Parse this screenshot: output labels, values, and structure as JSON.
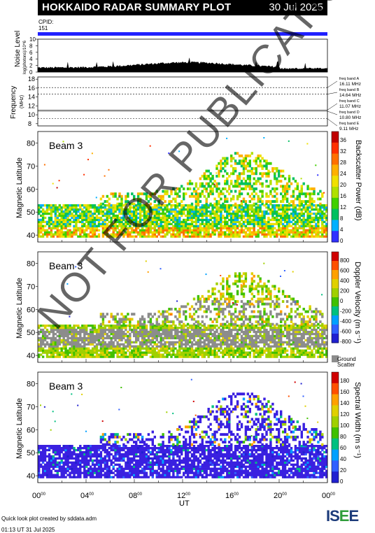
{
  "title": "HOKKAIDO RADAR SUMMARY PLOT",
  "date": "30 Jul 2025",
  "cpid": {
    "label": "CPID:",
    "value": "151"
  },
  "noise_panel": {
    "ylabel": "Noise Level",
    "yunit": "log(photons)/10^6",
    "yticks": [
      "10",
      "8",
      "6",
      "4",
      "2",
      "0"
    ]
  },
  "freq_panel": {
    "ylabel": "Frequency",
    "yunit": "(MHz)",
    "yticks": [
      "18",
      "16",
      "14",
      "12",
      "10",
      "8"
    ],
    "bands": [
      {
        "name": "freq band A",
        "freq": "16.11 MHz"
      },
      {
        "name": "freq band B",
        "freq": "14.64 MHz"
      },
      {
        "name": "freq band C",
        "freq": "11.07 MHz"
      },
      {
        "name": "freq band D",
        "freq": "10.80 MHz"
      },
      {
        "name": "freq band E",
        "freq": "9.11 MHz"
      }
    ]
  },
  "panels": [
    {
      "beam": "Beam  3",
      "ylabel": "Magnetic Latitude",
      "yticks": [
        "80",
        "70",
        "60",
        "50",
        "40"
      ],
      "cbar_label": "Backscatter Power (dB)",
      "cbar_ticks": [
        "36",
        "32",
        "28",
        "24",
        "20",
        "16",
        "12",
        "8",
        "4",
        "0"
      ]
    },
    {
      "beam": "Beam  3",
      "ylabel": "Magnetic Latitude",
      "yticks": [
        "80",
        "70",
        "60",
        "50",
        "40"
      ],
      "cbar_label": "Doppler Velocity (m s⁻¹)",
      "cbar_ticks": [
        "800",
        "600",
        "400",
        "200",
        "0",
        "-200",
        "-400",
        "-600",
        "-800"
      ],
      "ground_label": "Ground",
      "scatter_label": "Scatter"
    },
    {
      "beam": "Beam  3",
      "ylabel": "Magnetic Latitude",
      "yticks": [
        "80",
        "70",
        "60",
        "50",
        "40"
      ],
      "cbar_label": "Spectral Width (m s⁻¹)",
      "cbar_ticks": [
        "180",
        "160",
        "140",
        "120",
        "100",
        "80",
        "60",
        "40",
        "20",
        "0"
      ]
    }
  ],
  "xaxis": {
    "ticks": [
      "00",
      "04",
      "08",
      "12",
      "16",
      "20",
      "00"
    ],
    "tick_sup": "00",
    "label": "UT"
  },
  "watermark": "NOT FOR PUBLICATION",
  "footer": {
    "line1": "Quick look plot created by sddata.adm",
    "line2": "01:13 UT 31 Jul 2025"
  },
  "logo": {
    "text1": "IS",
    "text2": "E",
    "text3": "E"
  },
  "chart_data": {
    "type": "heatmap",
    "title": "HOKKAIDO RADAR SUMMARY PLOT",
    "x_range_hours_ut": [
      0,
      24
    ],
    "ylim": [
      37,
      85
    ],
    "ylabel": "Magnetic Latitude",
    "xlabel": "UT",
    "noise_level_range": [
      0,
      10
    ],
    "frequency_range_mhz": [
      7.5,
      18.5
    ],
    "frequency_bands_mhz": [
      16.11,
      14.64,
      11.07,
      10.8,
      9.11
    ],
    "backscatter_power_range_db": [
      0,
      38
    ],
    "doppler_velocity_range": [
      -900,
      900
    ],
    "spectral_width_range": [
      0,
      190
    ]
  }
}
